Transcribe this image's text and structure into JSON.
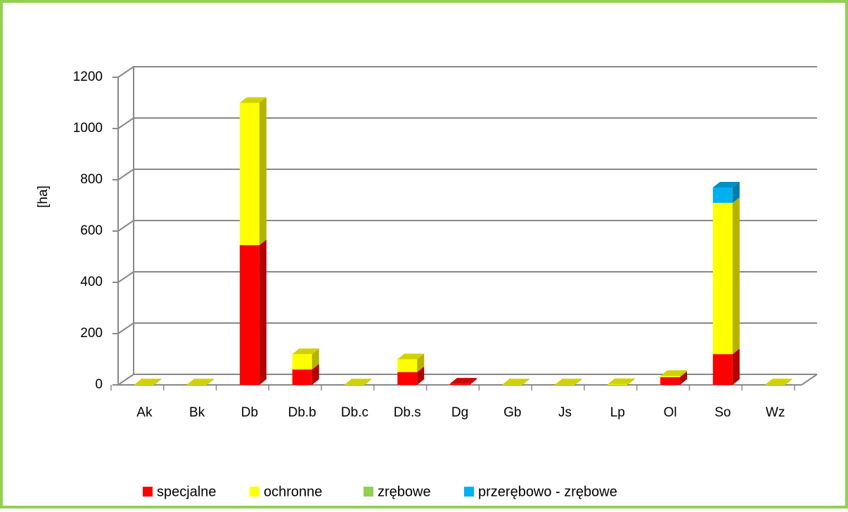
{
  "chart_data": {
    "type": "bar3d_stacked",
    "y_label": "[ha]",
    "categories": [
      "Ak",
      "Bk",
      "Db",
      "Db.b",
      "Db.c",
      "Db.s",
      "Dg",
      "Gb",
      "Js",
      "Lp",
      "Ol",
      "So",
      "Wz"
    ],
    "series": [
      {
        "name": "specjalne",
        "color": "#ff0000",
        "values": [
          0,
          0,
          545,
          60,
          0,
          50,
          5,
          0,
          0,
          0,
          30,
          120,
          0
        ]
      },
      {
        "name": "ochronne",
        "color": "#ffff00",
        "values": [
          2,
          2,
          555,
          60,
          2,
          50,
          0,
          2,
          2,
          3,
          5,
          590,
          2
        ]
      },
      {
        "name": "zrębowe",
        "color": "#92d050",
        "values": [
          0,
          0,
          0,
          0,
          0,
          0,
          0,
          0,
          0,
          0,
          0,
          0,
          0
        ]
      },
      {
        "name": "przerębowo - zrębowe",
        "color": "#00b0f0",
        "values": [
          0,
          0,
          0,
          0,
          0,
          0,
          0,
          0,
          0,
          0,
          0,
          60,
          0
        ]
      }
    ],
    "ylim": [
      0,
      1200
    ],
    "yticks": [
      0,
      200,
      400,
      600,
      800,
      1000,
      1200
    ],
    "grid": true
  }
}
